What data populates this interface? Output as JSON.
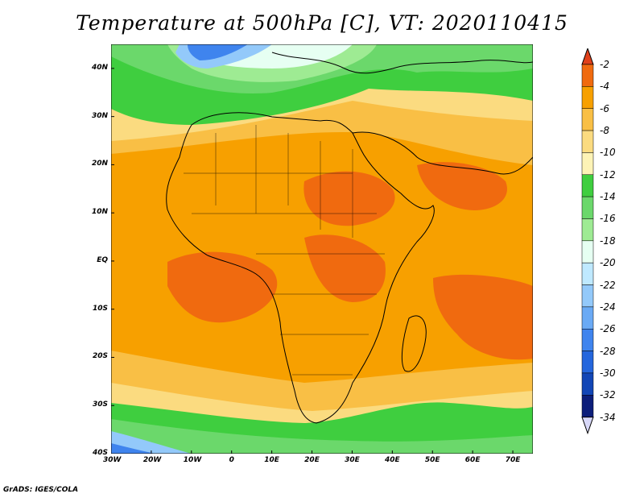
{
  "title": "Temperature at 500hPa [C], VT: 2020110415",
  "footer": "GrADS: IGES/COLA",
  "map": {
    "lon_range": [
      -30,
      75
    ],
    "lat_range": [
      -40,
      45
    ],
    "x_ticks": [
      "30W",
      "20W",
      "10W",
      "0",
      "10E",
      "20E",
      "30E",
      "40E",
      "50E",
      "60E",
      "70E"
    ],
    "y_ticks": [
      "40N",
      "30N",
      "20N",
      "10N",
      "EQ",
      "10S",
      "20S",
      "30S",
      "40S"
    ]
  },
  "colorbar": {
    "labels": [
      "-2",
      "-4",
      "-6",
      "-8",
      "-10",
      "-12",
      "-14",
      "-16",
      "-18",
      "-20",
      "-22",
      "-24",
      "-26",
      "-28",
      "-30",
      "-32",
      "-34"
    ],
    "colors": [
      "#e0401a",
      "#f06a0f",
      "#f7a000",
      "#f9bf45",
      "#fbdb80",
      "#fdf3b6",
      "#3fce3f",
      "#6bd86b",
      "#9eeb93",
      "#e6fff2",
      "#bfe9ff",
      "#93c9fa",
      "#6aaaf5",
      "#3f84ee",
      "#2466dd",
      "#1246b6",
      "#0c1e7a",
      "#d8d8f8"
    ]
  }
}
